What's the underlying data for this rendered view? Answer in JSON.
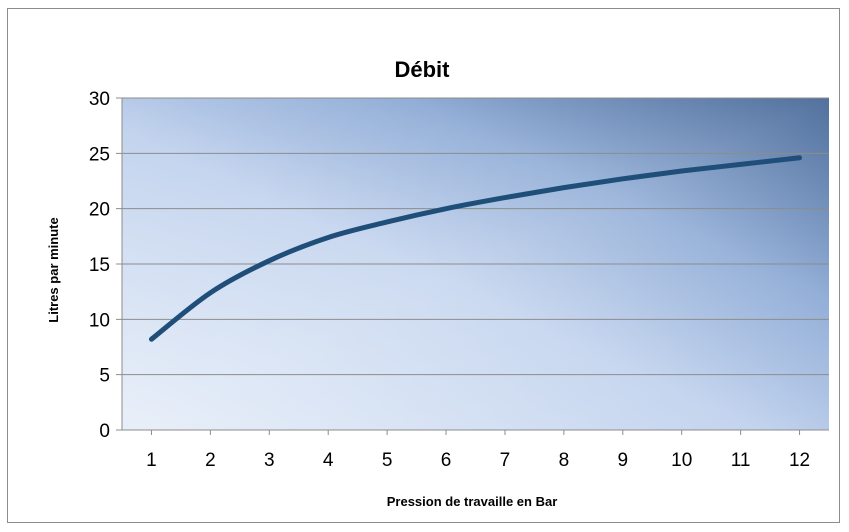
{
  "chart_data": {
    "type": "line",
    "title": "Débit",
    "xlabel": "Pression de travaille en Bar",
    "ylabel": "Litres par minute",
    "categories": [
      "1",
      "2",
      "3",
      "4",
      "5",
      "6",
      "7",
      "8",
      "9",
      "10",
      "11",
      "12"
    ],
    "x": [
      1,
      2,
      3,
      4,
      5,
      6,
      7,
      8,
      9,
      10,
      11,
      12
    ],
    "series": [
      {
        "values": [
          8.2,
          12.4,
          15.3,
          17.4,
          18.8,
          20.0,
          21.0,
          21.9,
          22.7,
          23.4,
          24.0,
          24.6
        ]
      }
    ],
    "xlim": [
      0.5,
      12.5
    ],
    "ylim": [
      0,
      30
    ],
    "yticks": [
      0,
      5,
      10,
      15,
      20,
      25,
      30
    ],
    "grid": "horizontal",
    "legend": "none",
    "colors": {
      "line": "#1f4e79",
      "grid": "#8c8c8c",
      "plot_bg_light": "#dbe6f6",
      "plot_bg_mid": "#b8cce8",
      "plot_bg_dark": "#2f5a8f"
    }
  }
}
